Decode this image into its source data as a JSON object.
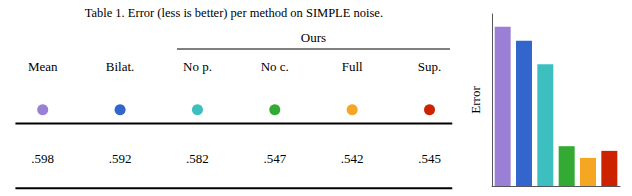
{
  "chart_data": {
    "type": "bar",
    "title": "Table 1. Error (less is better) per method on SIMPLE noise.",
    "categories": [
      "Mean",
      "Bilat.",
      "No p.",
      "No c.",
      "Full",
      "Sup."
    ],
    "values": [
      0.598,
      0.592,
      0.582,
      0.547,
      0.542,
      0.545
    ],
    "value_labels": [
      ".598",
      ".592",
      ".582",
      ".547",
      ".542",
      ".545"
    ],
    "colors": [
      "#9b7fd4",
      "#3366cc",
      "#3dbfbf",
      "#33aa33",
      "#f5a623",
      "#cc2200"
    ],
    "ylabel": "Error",
    "ylim": [
      0.53,
      0.60344
    ],
    "tick_labels": false,
    "grid": false,
    "annotations": [
      {
        "text": "Ours",
        "from": "No p.",
        "to": "Sup."
      }
    ]
  }
}
